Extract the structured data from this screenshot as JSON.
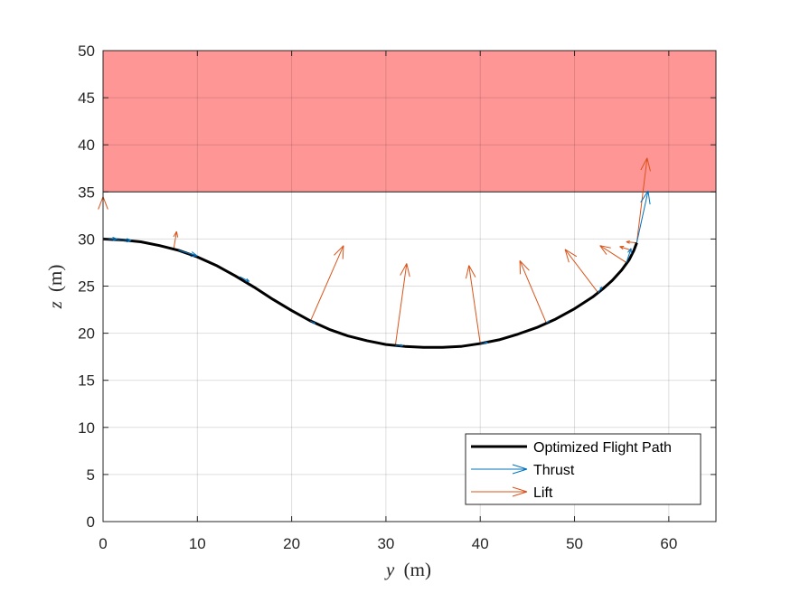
{
  "chart_data": {
    "type": "line",
    "title": "",
    "xlabel_var": "y",
    "xlabel_unit": "(m)",
    "ylabel_var": "z",
    "ylabel_unit": "(m)",
    "xlim": [
      0,
      65
    ],
    "ylim": [
      0,
      50
    ],
    "x_ticks": [
      "0",
      "10",
      "20",
      "30",
      "40",
      "50",
      "60"
    ],
    "y_ticks": [
      "0",
      "5",
      "10",
      "15",
      "20",
      "25",
      "30",
      "35",
      "40",
      "45",
      "50"
    ],
    "grid": true,
    "legend_position": "bottom-right",
    "forbidden_region": {
      "y_range": [
        0,
        65
      ],
      "z_range": [
        35,
        50
      ],
      "color": "#ff9696"
    },
    "series": [
      {
        "name": "Optimized Flight Path",
        "kind": "line",
        "color": "#000000",
        "points": [
          [
            0,
            30
          ],
          [
            2,
            29.9
          ],
          [
            4,
            29.7
          ],
          [
            6,
            29.3
          ],
          [
            8,
            28.8
          ],
          [
            10,
            28.1
          ],
          [
            12,
            27.2
          ],
          [
            14,
            26.1
          ],
          [
            16,
            24.9
          ],
          [
            18,
            23.6
          ],
          [
            20,
            22.4
          ],
          [
            22,
            21.3
          ],
          [
            24,
            20.4
          ],
          [
            26,
            19.7
          ],
          [
            28,
            19.2
          ],
          [
            30,
            18.8
          ],
          [
            32,
            18.6
          ],
          [
            34,
            18.5
          ],
          [
            36,
            18.5
          ],
          [
            38,
            18.6
          ],
          [
            40,
            18.9
          ],
          [
            42,
            19.3
          ],
          [
            44,
            19.9
          ],
          [
            46,
            20.6
          ],
          [
            48,
            21.5
          ],
          [
            50,
            22.6
          ],
          [
            52,
            23.9
          ],
          [
            53,
            24.7
          ],
          [
            54,
            25.6
          ],
          [
            55,
            26.7
          ],
          [
            55.8,
            27.8
          ],
          [
            56.3,
            28.8
          ],
          [
            56.6,
            29.6
          ]
        ]
      },
      {
        "name": "Thrust",
        "kind": "quiver",
        "color": "#0072bd",
        "vectors": [
          [
            0,
            30,
            1.5,
            0
          ],
          [
            1.5,
            29.9,
            1.5,
            -0.05
          ],
          [
            8,
            28.8,
            2,
            -0.6
          ],
          [
            14.5,
            26,
            1,
            -0.5
          ],
          [
            22,
            21.3,
            0.5,
            -0.3
          ],
          [
            31,
            18.7,
            0.8,
            0
          ],
          [
            40,
            18.9,
            0.8,
            0.1
          ],
          [
            47,
            21.1,
            0.3,
            0.2
          ],
          [
            52.5,
            24.3,
            0.4,
            0.6
          ],
          [
            55.5,
            27.5,
            0.5,
            1.5
          ],
          [
            56.6,
            29.6,
            1.2,
            5.5
          ]
        ]
      },
      {
        "name": "Lift",
        "kind": "quiver",
        "color": "#d95319",
        "vectors": [
          [
            0,
            30,
            0,
            4.5
          ],
          [
            7.5,
            29,
            0.3,
            1.8
          ],
          [
            22,
            21.3,
            3.5,
            8
          ],
          [
            31,
            18.7,
            1.2,
            8.7
          ],
          [
            40,
            18.9,
            -1.2,
            8.3
          ],
          [
            47,
            21.1,
            -2.8,
            6.6
          ],
          [
            52.5,
            24.3,
            -3.5,
            4.6
          ],
          [
            55.5,
            27.5,
            -2.8,
            1.8
          ],
          [
            56,
            28.8,
            -1.2,
            0.4
          ],
          [
            56.6,
            29.6,
            -1.1,
            0.1
          ],
          [
            56.6,
            29.6,
            1.1,
            9
          ]
        ]
      }
    ]
  }
}
